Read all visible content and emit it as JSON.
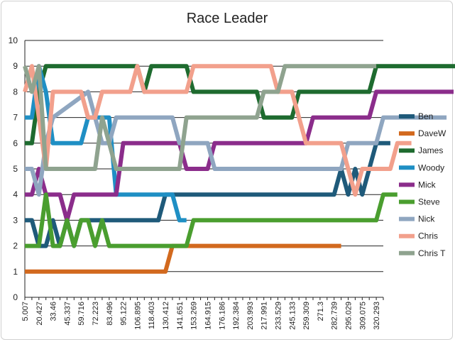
{
  "chart_data": {
    "type": "line",
    "title": "Race Leader",
    "xlabel": "",
    "ylabel": "",
    "ylim": [
      0,
      10
    ],
    "yticks": [
      0,
      1,
      2,
      3,
      4,
      5,
      6,
      7,
      8,
      9,
      10
    ],
    "grid": "horizontal",
    "legend_position": "right",
    "x_tick_labels": [
      "5.007",
      "20.427",
      "33.46",
      "45.337",
      "59.716",
      "72.223",
      "83.496",
      "95.122",
      "106.895",
      "118.403",
      "130.412",
      "141.651",
      "153.269",
      "164.915",
      "176.186",
      "192.384",
      "203.993",
      "217.991",
      "233.529",
      "245.133",
      "259.309",
      "271.3",
      "282.739",
      "295.029",
      "309.075",
      "320.293"
    ],
    "tick_every": 2,
    "n_points": 52,
    "series": [
      {
        "name": "Ben",
        "color": "#1f5a7a",
        "points": [
          [
            0,
            3
          ],
          [
            1,
            3
          ],
          [
            2,
            2
          ],
          [
            3,
            2
          ],
          [
            4,
            3
          ],
          [
            5,
            2
          ],
          [
            6,
            3
          ],
          [
            7,
            2
          ],
          [
            8,
            3
          ],
          [
            10,
            3
          ],
          [
            14,
            3
          ],
          [
            16,
            3
          ],
          [
            18,
            3
          ],
          [
            19,
            3
          ],
          [
            20,
            4
          ],
          [
            32,
            4
          ],
          [
            40,
            4
          ],
          [
            44,
            4
          ],
          [
            45,
            5
          ],
          [
            46,
            4
          ],
          [
            47,
            5
          ],
          [
            48,
            4
          ],
          [
            49,
            5
          ],
          [
            50,
            6
          ],
          [
            52,
            6
          ]
        ]
      },
      {
        "name": "DaveW",
        "color": "#d2691e",
        "points": [
          [
            0,
            1
          ],
          [
            10,
            1
          ],
          [
            20,
            1
          ],
          [
            20,
            1
          ],
          [
            21,
            2
          ],
          [
            30,
            2
          ],
          [
            38,
            2
          ],
          [
            45,
            2
          ]
        ]
      },
      {
        "name": "James",
        "color": "#1e6b2f",
        "points": [
          [
            0,
            6
          ],
          [
            1,
            6
          ],
          [
            2,
            8
          ],
          [
            3,
            9
          ],
          [
            16,
            9
          ],
          [
            17,
            8
          ],
          [
            18,
            9
          ],
          [
            23,
            9
          ],
          [
            24,
            8
          ],
          [
            33,
            8
          ],
          [
            34,
            7
          ],
          [
            38,
            7
          ],
          [
            39,
            8
          ],
          [
            49,
            8
          ],
          [
            50,
            9
          ],
          [
            62,
            9
          ]
        ]
      },
      {
        "name": "Woody",
        "color": "#1f8fc4",
        "points": [
          [
            0,
            7
          ],
          [
            1,
            7
          ],
          [
            2,
            9
          ],
          [
            3,
            8
          ],
          [
            4,
            6
          ],
          [
            6,
            6
          ],
          [
            8,
            6
          ],
          [
            9,
            7
          ],
          [
            12,
            7
          ],
          [
            13,
            4
          ],
          [
            21,
            4
          ],
          [
            22,
            3
          ],
          [
            23,
            3
          ]
        ]
      },
      {
        "name": "Mick",
        "color": "#8b2d8b",
        "points": [
          [
            0,
            4
          ],
          [
            1,
            4
          ],
          [
            2,
            5
          ],
          [
            3,
            4
          ],
          [
            5,
            4
          ],
          [
            6,
            3
          ],
          [
            7,
            4
          ],
          [
            13,
            4
          ],
          [
            14,
            6
          ],
          [
            20,
            6
          ],
          [
            22,
            6
          ],
          [
            23,
            5
          ],
          [
            26,
            5
          ],
          [
            27,
            6
          ],
          [
            40,
            6
          ],
          [
            41,
            7
          ],
          [
            49,
            7
          ],
          [
            50,
            8
          ],
          [
            61,
            8
          ]
        ]
      },
      {
        "name": "Steve",
        "color": "#4a9e2f",
        "points": [
          [
            0,
            2
          ],
          [
            2,
            2
          ],
          [
            3,
            4
          ],
          [
            4,
            2
          ],
          [
            5,
            2
          ],
          [
            6,
            3
          ],
          [
            7,
            2
          ],
          [
            8,
            3
          ],
          [
            9,
            3
          ],
          [
            10,
            2
          ],
          [
            11,
            3
          ],
          [
            12,
            2
          ],
          [
            23,
            2
          ],
          [
            24,
            3
          ],
          [
            50,
            3
          ],
          [
            51,
            4
          ],
          [
            53,
            4
          ]
        ]
      },
      {
        "name": "Nick",
        "color": "#8fa6c0",
        "points": [
          [
            0,
            5
          ],
          [
            1,
            5
          ],
          [
            2,
            4
          ],
          [
            3,
            6
          ],
          [
            4,
            7
          ],
          [
            9,
            8
          ],
          [
            10,
            7
          ],
          [
            11,
            6
          ],
          [
            12,
            6
          ],
          [
            13,
            7
          ],
          [
            14,
            7
          ],
          [
            21,
            7
          ],
          [
            22,
            6
          ],
          [
            24,
            6
          ],
          [
            26,
            6
          ],
          [
            27,
            5
          ],
          [
            45,
            5
          ],
          [
            46,
            6
          ],
          [
            50,
            6
          ],
          [
            51,
            7
          ],
          [
            60,
            7
          ]
        ]
      },
      {
        "name": "Chris",
        "color": "#f2a08c",
        "points": [
          [
            0,
            8
          ],
          [
            1,
            9
          ],
          [
            2,
            7
          ],
          [
            3,
            5
          ],
          [
            4,
            8
          ],
          [
            8,
            8
          ],
          [
            9,
            7
          ],
          [
            10,
            7
          ],
          [
            11,
            8
          ],
          [
            15,
            8
          ],
          [
            16,
            9
          ],
          [
            17,
            8
          ],
          [
            18,
            8
          ],
          [
            23,
            8
          ],
          [
            24,
            9
          ],
          [
            35,
            9
          ],
          [
            36,
            8
          ],
          [
            38,
            8
          ],
          [
            39,
            7
          ],
          [
            40,
            6
          ],
          [
            45,
            6
          ],
          [
            46,
            5
          ],
          [
            47,
            4
          ],
          [
            48,
            5
          ],
          [
            49,
            5
          ],
          [
            50,
            5
          ],
          [
            52,
            5
          ],
          [
            53,
            6
          ],
          [
            55,
            6
          ]
        ]
      },
      {
        "name": "Chris T",
        "color": "#8fa38f",
        "points": [
          [
            0,
            9
          ],
          [
            1,
            8
          ],
          [
            2,
            9
          ],
          [
            3,
            5
          ],
          [
            4,
            5
          ],
          [
            10,
            5
          ],
          [
            11,
            7
          ],
          [
            12,
            6
          ],
          [
            13,
            5
          ],
          [
            22,
            5
          ],
          [
            23,
            7
          ],
          [
            25,
            7
          ],
          [
            33,
            7
          ],
          [
            34,
            8
          ],
          [
            36,
            8
          ],
          [
            37,
            9
          ],
          [
            50,
            9
          ]
        ]
      }
    ]
  }
}
